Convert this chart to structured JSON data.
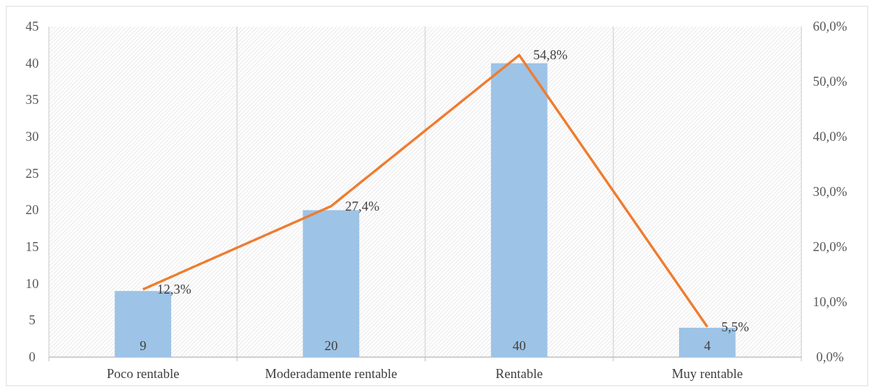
{
  "chart_data": {
    "type": "bar",
    "categories": [
      "Poco rentable",
      "Moderadamente rentable",
      "Rentable",
      "Muy rentable"
    ],
    "series": [
      {
        "color": "#9dc3e6",
        "values": [
          9,
          20,
          40,
          4
        ],
        "value_labels": [
          "9",
          "20",
          "40",
          "4"
        ]
      },
      {
        "type": "line",
        "axis": "y2",
        "color": "#ed7d31",
        "values": [
          12.3,
          27.4,
          54.8,
          5.5
        ],
        "value_labels": [
          "12,3%",
          "27,4%",
          "54,8%",
          "5,5%"
        ]
      }
    ],
    "ylim": [
      0,
      45
    ],
    "yticks": [
      0,
      5,
      10,
      15,
      20,
      25,
      30,
      35,
      40,
      45
    ],
    "y2lim": [
      0,
      60
    ],
    "y2ticks": [
      {
        "value": 0,
        "label": "0,0%"
      },
      {
        "value": 10,
        "label": "10,0%"
      },
      {
        "value": 20,
        "label": "20,0%"
      },
      {
        "value": 30,
        "label": "30,0%"
      },
      {
        "value": 40,
        "label": "40,0%"
      },
      {
        "value": 50,
        "label": "50,0%"
      },
      {
        "value": 60,
        "label": "60,0%"
      }
    ],
    "grid": "x",
    "marker": "none",
    "line_style": "solid"
  }
}
